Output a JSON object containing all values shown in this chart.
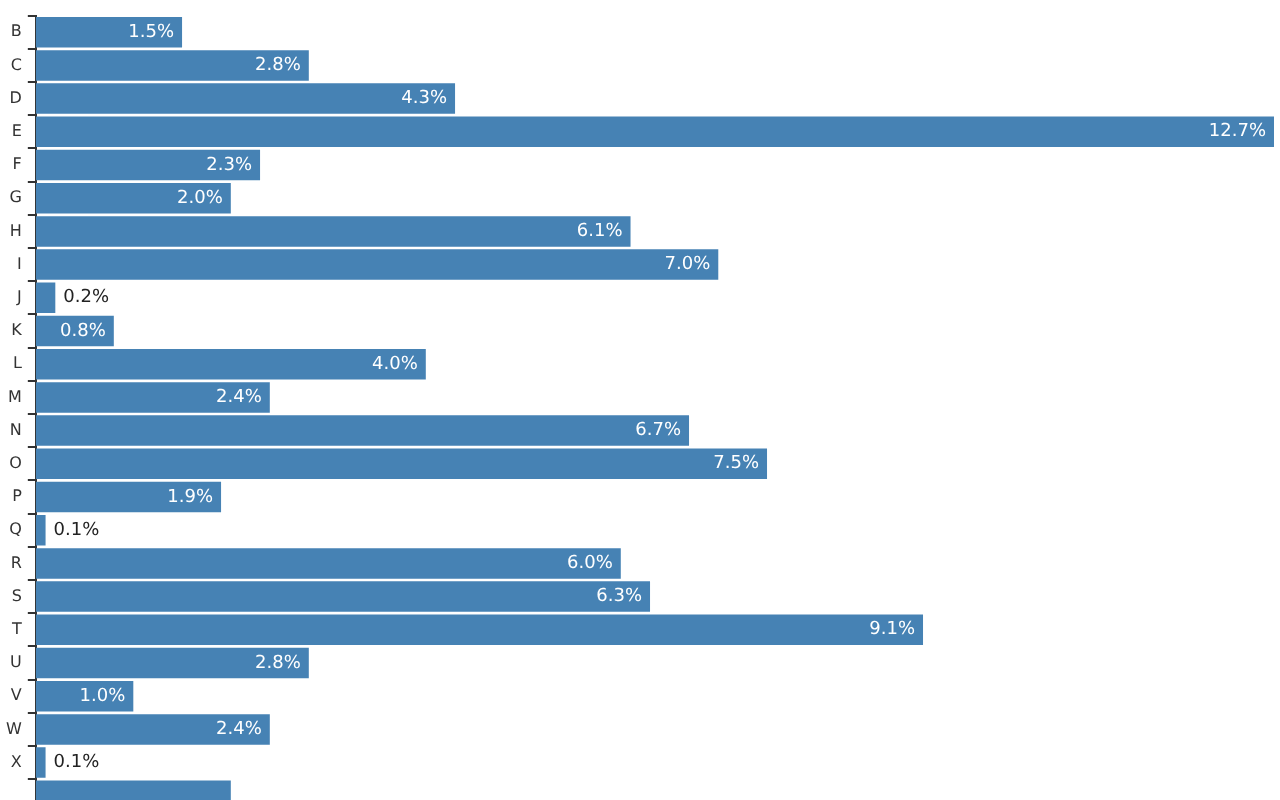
{
  "chart_data": {
    "type": "bar",
    "orientation": "horizontal",
    "categories": [
      "B",
      "C",
      "D",
      "E",
      "F",
      "G",
      "H",
      "I",
      "J",
      "K",
      "L",
      "M",
      "N",
      "O",
      "P",
      "Q",
      "R",
      "S",
      "T",
      "U",
      "V",
      "W",
      "X",
      null
    ],
    "values": [
      1.5,
      2.8,
      4.3,
      12.7,
      2.3,
      2.0,
      6.1,
      7.0,
      0.2,
      0.8,
      4.0,
      2.4,
      6.7,
      7.5,
      1.9,
      0.1,
      6.0,
      6.3,
      9.1,
      2.8,
      1.0,
      2.4,
      0.1,
      2.0
    ],
    "value_labels": [
      "1.5%",
      "2.8%",
      "4.3%",
      "12.7%",
      "2.3%",
      "2.0%",
      "6.1%",
      "7.0%",
      "0.2%",
      "0.8%",
      "4.0%",
      "2.4%",
      "6.7%",
      "7.5%",
      "1.9%",
      "0.1%",
      "6.0%",
      "6.3%",
      "9.1%",
      "2.8%",
      "1.0%",
      "2.4%",
      "0.1%",
      null
    ],
    "color": "#4682b4",
    "grid": false,
    "legend": false
  }
}
